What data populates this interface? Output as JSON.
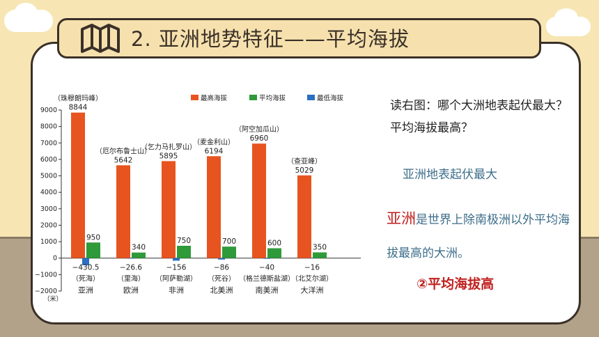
{
  "title": "2. 亚洲地势特征——平均海拔",
  "question": "读右图：哪个大洲地表起伏最大？平均海拔最高？",
  "answer1": "亚洲地表起伏最大",
  "answer2_highlight": "亚洲",
  "answer2_rest": "是世界上除南极洲以外平均海拔最高的大洲。",
  "answer3": "②平均海拔高",
  "colors": {
    "max": "#e8541f",
    "avg": "#2e9a3a",
    "min": "#2a6fc2",
    "accent": "#c0201f"
  },
  "chart_data": {
    "type": "bar",
    "categories": [
      "亚洲",
      "欧洲",
      "非洲",
      "北美洲",
      "南美洲",
      "大洋洲"
    ],
    "series": [
      {
        "name": "最高海拔",
        "values": [
          8844,
          5642,
          5895,
          6194,
          6960,
          5029
        ]
      },
      {
        "name": "平均海拔",
        "values": [
          950,
          340,
          750,
          700,
          600,
          350
        ]
      },
      {
        "name": "最低海拔",
        "values": [
          -430.5,
          -26.6,
          -156,
          -86,
          -40,
          -16
        ]
      }
    ],
    "peak_names": [
      "（珠穆朗玛峰）",
      "（厄尔布鲁士山）",
      "（乞力马扎罗山）",
      "（麦金利山）",
      "（阿空加瓜山）",
      "（查亚峰）"
    ],
    "low_names": [
      "（死海）",
      "（里海）",
      "（阿萨勒湖）",
      "（死谷）",
      "（格兰德斯盐湖）",
      "（北艾尔湖）"
    ],
    "yticks": [
      9000,
      8000,
      7000,
      6000,
      5000,
      4000,
      3000,
      2000,
      1000,
      0,
      -1000,
      -2000
    ],
    "unit": "（米）",
    "ylim": [
      -2000,
      9000
    ],
    "legend_position": "top-right"
  }
}
